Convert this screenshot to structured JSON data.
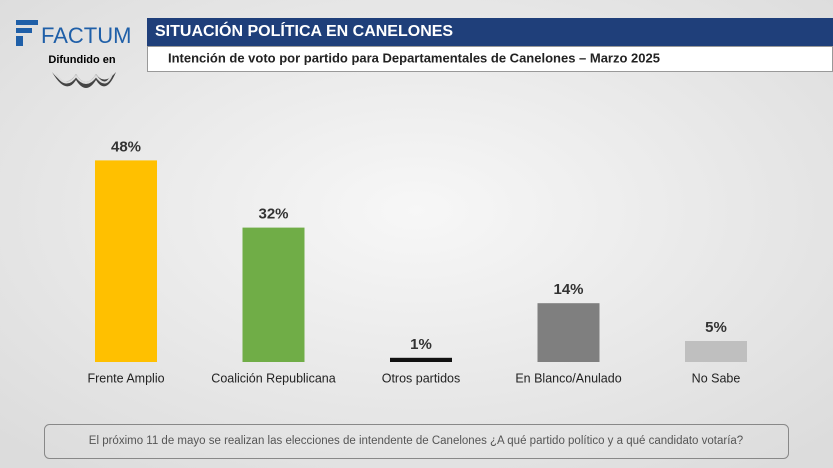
{
  "brand": "FACTUM",
  "broadcast": "Difundido en",
  "chart_data": {
    "type": "bar",
    "title": "SITUACIÓN POLÍTICA EN CANELONES",
    "subtitle": "Intención de voto por partido para Departamentales de Canelones – Marzo 2025",
    "categories": [
      "Frente Amplio",
      "Coalición Republicana",
      "Otros partidos",
      "En Blanco/Anulado",
      "No Sabe"
    ],
    "values": [
      48,
      32,
      1,
      14,
      5
    ],
    "value_labels": [
      "48%",
      "32%",
      "1%",
      "14%",
      "5%"
    ],
    "colors": [
      "#ffc000",
      "#70ad47",
      "#111111",
      "#7f7f7f",
      "#bfbfbf"
    ]
  },
  "footnote": "El próximo 11 de mayo se realizan las elecciones de intendente de Canelones ¿A qué partido político y a qué candidato votaría?"
}
